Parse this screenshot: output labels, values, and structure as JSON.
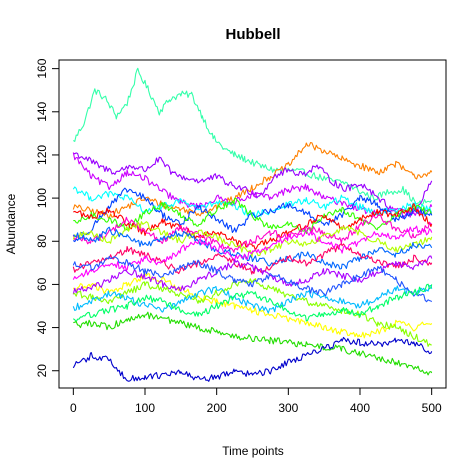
{
  "chart_data": {
    "type": "line",
    "title": "Hubbell",
    "xlabel": "Time points",
    "ylabel": "Abundance",
    "xlim": [
      -20,
      520
    ],
    "ylim": [
      12,
      164
    ],
    "x_ticks": [
      0,
      100,
      200,
      300,
      400,
      500
    ],
    "y_ticks": [
      20,
      40,
      60,
      80,
      100,
      120,
      140,
      160
    ],
    "grid": false,
    "legend": "none",
    "series": [
      {
        "color": "#33FFAA",
        "x": [
          0,
          15,
          30,
          45,
          60,
          75,
          90,
          105,
          120,
          135,
          150,
          165,
          180,
          195,
          210,
          225,
          240,
          260,
          280,
          300,
          320,
          340,
          360,
          380,
          400,
          420,
          440,
          460,
          480,
          500
        ],
        "values": [
          126,
          135,
          150,
          146,
          138,
          144,
          159,
          150,
          140,
          146,
          148,
          148,
          138,
          128,
          123,
          120,
          118,
          115,
          113,
          113,
          112,
          110,
          108,
          107,
          103,
          100,
          103,
          104,
          97,
          99
        ]
      },
      {
        "color": "#FF8000",
        "x": [
          0,
          25,
          50,
          75,
          100,
          125,
          150,
          175,
          200,
          225,
          250,
          275,
          300,
          325,
          350,
          375,
          400,
          425,
          450,
          475,
          500
        ],
        "values": [
          96,
          94,
          92,
          96,
          100,
          97,
          95,
          93,
          96,
          100,
          105,
          110,
          115,
          125,
          122,
          118,
          115,
          112,
          116,
          110,
          112
        ]
      },
      {
        "color": "#9900FF",
        "x": [
          0,
          20,
          40,
          60,
          80,
          100,
          120,
          140,
          160,
          180,
          200,
          220,
          240,
          260,
          280,
          300,
          320,
          340,
          360,
          380,
          400,
          420,
          440,
          460,
          480,
          500
        ],
        "values": [
          121,
          118,
          114,
          112,
          115,
          113,
          118,
          111,
          109,
          108,
          110,
          106,
          104,
          101,
          110,
          113,
          111,
          115,
          108,
          104,
          107,
          102,
          96,
          92,
          95,
          108
        ]
      },
      {
        "color": "#CC00FF",
        "x": [
          0,
          25,
          50,
          75,
          100,
          125,
          150,
          175,
          200,
          225,
          250,
          275,
          300,
          325,
          350,
          375,
          400,
          425,
          450,
          475,
          500
        ],
        "values": [
          120,
          110,
          105,
          112,
          109,
          103,
          98,
          96,
          100,
          98,
          102,
          100,
          104,
          105,
          100,
          98,
          95,
          93,
          95,
          92,
          96
        ]
      },
      {
        "color": "#00FFFF",
        "x": [
          0,
          25,
          50,
          75,
          100,
          125,
          150,
          175,
          200,
          225,
          250,
          275,
          300,
          325,
          350,
          375,
          400,
          425,
          450,
          475,
          500
        ],
        "values": [
          105,
          100,
          102,
          100,
          94,
          96,
          99,
          95,
          98,
          96,
          92,
          94,
          97,
          99,
          96,
          100,
          96,
          93,
          95,
          97,
          94
        ]
      },
      {
        "color": "#0040FF",
        "x": [
          0,
          25,
          50,
          75,
          100,
          125,
          150,
          175,
          200,
          225,
          250,
          275,
          300,
          325,
          350,
          375,
          400,
          425,
          450,
          475,
          500
        ],
        "values": [
          80,
          86,
          96,
          104,
          100,
          92,
          88,
          96,
          90,
          85,
          92,
          94,
          97,
          93,
          88,
          92,
          100,
          97,
          90,
          94,
          92
        ]
      },
      {
        "color": "#33FF00",
        "x": [
          0,
          25,
          50,
          75,
          100,
          125,
          150,
          175,
          200,
          225,
          250,
          275,
          300,
          325,
          350,
          375,
          400,
          425,
          450,
          475,
          500
        ],
        "values": [
          88,
          92,
          90,
          86,
          93,
          97,
          92,
          88,
          95,
          99,
          92,
          86,
          88,
          84,
          92,
          95,
          90,
          86,
          92,
          96,
          93
        ]
      },
      {
        "color": "#FF0000",
        "x": [
          0,
          25,
          50,
          75,
          100,
          125,
          150,
          175,
          200,
          225,
          250,
          275,
          300,
          325,
          350,
          375,
          400,
          425,
          450,
          475,
          500
        ],
        "values": [
          94,
          91,
          95,
          88,
          84,
          89,
          86,
          82,
          85,
          80,
          77,
          80,
          84,
          88,
          92,
          86,
          90,
          94,
          92,
          96,
          88
        ]
      },
      {
        "color": "#FF00CC",
        "x": [
          0,
          25,
          50,
          75,
          100,
          125,
          150,
          175,
          200,
          225,
          250,
          275,
          300,
          325,
          350,
          375,
          400,
          425,
          450,
          475,
          500
        ],
        "values": [
          82,
          80,
          84,
          90,
          85,
          80,
          86,
          83,
          79,
          76,
          80,
          84,
          82,
          86,
          84,
          80,
          87,
          92,
          86,
          82,
          88
        ]
      },
      {
        "color": "#B3FF00",
        "x": [
          0,
          25,
          50,
          75,
          100,
          125,
          150,
          175,
          200,
          225,
          250,
          275,
          300,
          325,
          350,
          375,
          400,
          425,
          450,
          475,
          500
        ],
        "values": [
          82,
          84,
          80,
          86,
          88,
          84,
          80,
          85,
          82,
          78,
          74,
          76,
          80,
          78,
          82,
          86,
          84,
          80,
          76,
          78,
          82
        ]
      },
      {
        "color": "#0066FF",
        "x": [
          0,
          25,
          50,
          75,
          100,
          125,
          150,
          175,
          200,
          225,
          250,
          275,
          300,
          325,
          350,
          375,
          400,
          425,
          450,
          475,
          500
        ],
        "values": [
          83,
          80,
          85,
          82,
          78,
          81,
          84,
          80,
          76,
          74,
          72,
          70,
          72,
          74,
          70,
          68,
          72,
          76,
          74,
          78,
          77
        ]
      },
      {
        "color": "#FF0066",
        "x": [
          0,
          25,
          50,
          75,
          100,
          125,
          150,
          175,
          200,
          225,
          250,
          275,
          300,
          325,
          350,
          375,
          400,
          425,
          450,
          475,
          500
        ],
        "values": [
          67,
          70,
          72,
          76,
          74,
          70,
          66,
          70,
          74,
          70,
          66,
          68,
          72,
          70,
          74,
          78,
          74,
          70,
          68,
          72,
          70
        ]
      },
      {
        "color": "#FF00FF",
        "x": [
          0,
          25,
          50,
          75,
          100,
          125,
          150,
          175,
          200,
          225,
          250,
          275,
          300,
          325,
          350,
          375,
          400,
          425,
          450,
          475,
          500
        ],
        "values": [
          63,
          66,
          70,
          68,
          72,
          70,
          76,
          80,
          77,
          72,
          74,
          78,
          82,
          84,
          80,
          76,
          80,
          84,
          82,
          86,
          84
        ]
      },
      {
        "color": "#FFFF00",
        "x": [
          0,
          25,
          50,
          75,
          100,
          125,
          150,
          175,
          200,
          225,
          250,
          275,
          300,
          325,
          350,
          375,
          400,
          425,
          450,
          475,
          500
        ],
        "values": [
          58,
          60,
          56,
          60,
          64,
          62,
          58,
          54,
          52,
          50,
          48,
          46,
          44,
          42,
          40,
          38,
          36,
          38,
          42,
          40,
          42
        ]
      },
      {
        "color": "#AA00FF",
        "x": [
          0,
          25,
          50,
          75,
          100,
          125,
          150,
          175,
          200,
          225,
          250,
          275,
          300,
          325,
          350,
          375,
          400,
          425,
          450,
          475,
          500
        ],
        "values": [
          57,
          58,
          62,
          66,
          64,
          60,
          58,
          62,
          66,
          70,
          68,
          64,
          60,
          62,
          66,
          64,
          62,
          66,
          70,
          68,
          72
        ]
      },
      {
        "color": "#88FF00",
        "x": [
          0,
          25,
          50,
          75,
          100,
          125,
          150,
          175,
          200,
          225,
          250,
          275,
          300,
          325,
          350,
          375,
          400,
          425,
          450,
          475,
          500
        ],
        "values": [
          56,
          54,
          52,
          56,
          60,
          58,
          55,
          52,
          56,
          60,
          62,
          58,
          55,
          52,
          50,
          48,
          46,
          42,
          40,
          36,
          32
        ]
      },
      {
        "color": "#00BBFF",
        "x": [
          0,
          25,
          50,
          75,
          100,
          125,
          150,
          175,
          200,
          225,
          250,
          275,
          300,
          325,
          350,
          375,
          400,
          425,
          450,
          475,
          500
        ],
        "values": [
          49,
          52,
          56,
          54,
          50,
          48,
          52,
          56,
          58,
          54,
          50,
          48,
          52,
          56,
          54,
          52,
          50,
          54,
          58,
          56,
          58
        ]
      },
      {
        "color": "#2255FF",
        "x": [
          0,
          25,
          50,
          75,
          100,
          125,
          150,
          175,
          200,
          225,
          250,
          275,
          300,
          325,
          350,
          375,
          400,
          425,
          450,
          475,
          500
        ],
        "values": [
          70,
          68,
          72,
          70,
          66,
          64,
          68,
          70,
          66,
          62,
          60,
          64,
          62,
          58,
          56,
          60,
          64,
          68,
          62,
          56,
          52
        ]
      },
      {
        "color": "#00FF66",
        "x": [
          0,
          25,
          50,
          75,
          100,
          125,
          150,
          175,
          200,
          225,
          250,
          275,
          300,
          325,
          350,
          375,
          400,
          425,
          450,
          475,
          500
        ],
        "values": [
          44,
          46,
          48,
          50,
          54,
          52,
          48,
          46,
          50,
          54,
          56,
          52,
          48,
          44,
          46,
          48,
          46,
          50,
          54,
          56,
          60
        ]
      },
      {
        "color": "#22DD00",
        "x": [
          0,
          25,
          50,
          75,
          100,
          125,
          150,
          175,
          200,
          225,
          250,
          275,
          300,
          325,
          350,
          375,
          400,
          425,
          450,
          475,
          500
        ],
        "values": [
          41,
          42,
          40,
          44,
          46,
          44,
          42,
          40,
          38,
          36,
          35,
          34,
          33,
          32,
          31,
          30,
          28,
          26,
          24,
          22,
          19
        ]
      },
      {
        "color": "#0000CC",
        "x": [
          0,
          25,
          50,
          75,
          100,
          125,
          150,
          175,
          200,
          225,
          250,
          275,
          300,
          325,
          350,
          375,
          400,
          425,
          450,
          475,
          500
        ],
        "values": [
          22,
          27,
          25,
          16,
          17,
          18,
          19,
          16,
          17,
          20,
          18,
          20,
          24,
          27,
          30,
          34,
          33,
          32,
          34,
          33,
          29
        ]
      }
    ]
  }
}
